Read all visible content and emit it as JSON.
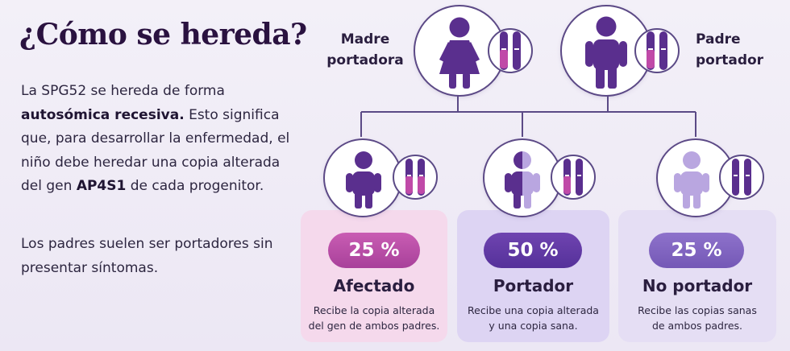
{
  "title": "¿Cómo se hereda?",
  "intro": {
    "part1": "La SPG52 se hereda de forma ",
    "bold1": "autosómica recesiva.",
    "part2": " Esto significa que, para desarrollar la enfermedad, el niño debe heredar una copia alterada del gen ",
    "bold2": "AP4S1",
    "part3": " de cada progenitor."
  },
  "note": "Los padres suelen ser portadores sin presentar síntomas.",
  "parents": {
    "mother": {
      "label_line1": "Madre",
      "label_line2": "portadora",
      "icon": "female-figure-icon"
    },
    "father": {
      "label_line1": "Padre",
      "label_line2": "portador",
      "icon": "male-figure-icon"
    }
  },
  "outcomes": [
    {
      "percent": "25 %",
      "name": "Afectado",
      "desc_line1": "Recibe la copia alterada",
      "desc_line2": "del gen de ambos padres."
    },
    {
      "percent": "50 %",
      "name": "Portador",
      "desc_line1": "Recibe una copia alterada",
      "desc_line2": "y una copia sana."
    },
    {
      "percent": "25 %",
      "name": "No portador",
      "desc_line1": "Recibe las copias sanas",
      "desc_line2": "de ambos padres."
    }
  ],
  "colors": {
    "dark_purple": "#5a2f8e",
    "light_purple": "#b9a6e0",
    "altered_pink": "#c04aa8",
    "connector": "#5b4a86"
  }
}
